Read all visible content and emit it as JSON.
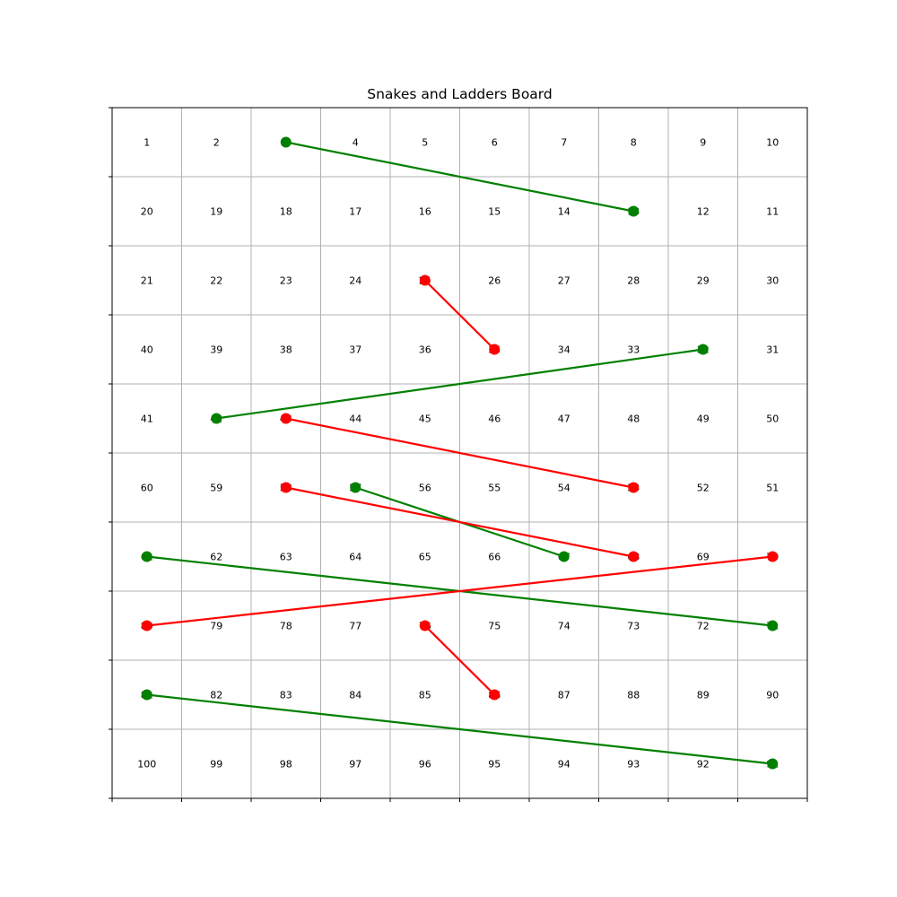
{
  "chart_data": {
    "type": "board",
    "title": "Snakes and Ladders Board",
    "grid": true,
    "rows": [
      [
        1,
        2,
        3,
        4,
        5,
        6,
        7,
        8,
        9,
        10
      ],
      [
        20,
        19,
        18,
        17,
        16,
        15,
        14,
        13,
        12,
        11
      ],
      [
        21,
        22,
        23,
        24,
        25,
        26,
        27,
        28,
        29,
        30
      ],
      [
        40,
        39,
        38,
        37,
        36,
        35,
        34,
        33,
        32,
        31
      ],
      [
        41,
        42,
        43,
        44,
        45,
        46,
        47,
        48,
        49,
        50
      ],
      [
        60,
        59,
        58,
        57,
        56,
        55,
        54,
        53,
        52,
        51
      ],
      [
        61,
        62,
        63,
        64,
        65,
        66,
        67,
        68,
        69,
        70
      ],
      [
        80,
        79,
        78,
        77,
        76,
        75,
        74,
        73,
        72,
        71
      ],
      [
        81,
        82,
        83,
        84,
        85,
        86,
        87,
        88,
        89,
        90
      ],
      [
        100,
        99,
        98,
        97,
        96,
        95,
        94,
        93,
        92,
        91
      ]
    ],
    "ladders": [
      {
        "from": 3,
        "to": 13
      },
      {
        "from": 32,
        "to": 42
      },
      {
        "from": 57,
        "to": 67
      },
      {
        "from": 61,
        "to": 71
      },
      {
        "from": 81,
        "to": 91
      }
    ],
    "snakes": [
      {
        "from": 25,
        "to": 35
      },
      {
        "from": 43,
        "to": 53
      },
      {
        "from": 58,
        "to": 68
      },
      {
        "from": 70,
        "to": 80
      },
      {
        "from": 76,
        "to": 86
      }
    ],
    "colors": {
      "ladder": "#008000",
      "snake": "#ff0000",
      "grid": "#b0b0b0",
      "frame": "#000000"
    }
  }
}
